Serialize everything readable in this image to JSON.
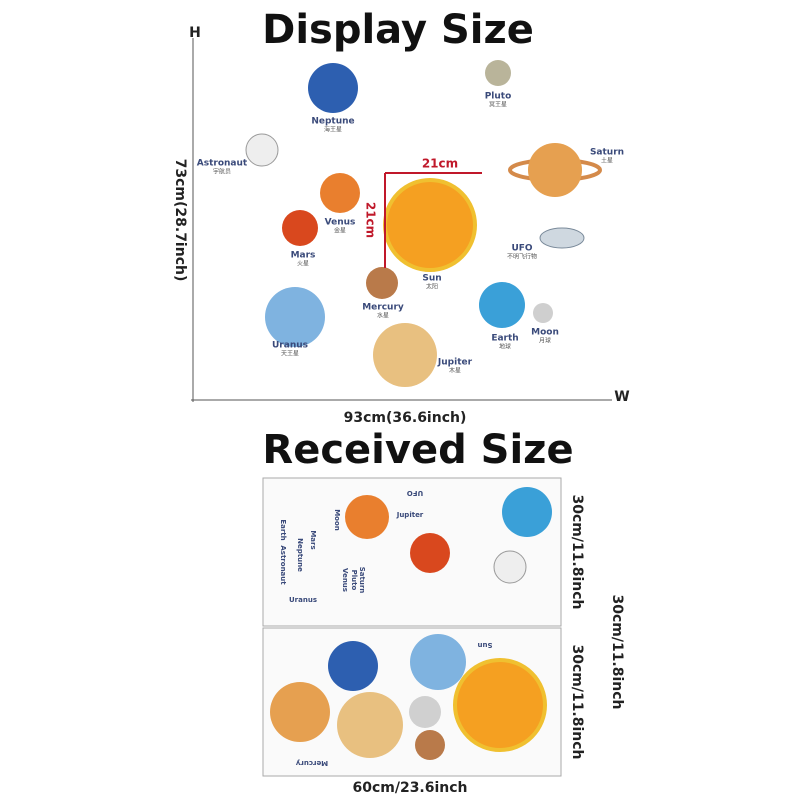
{
  "display": {
    "title": "Display Size",
    "h_label": "H",
    "w_label": "W",
    "height": "73cm(28.7inch)",
    "width": "93cm(36.6inch)",
    "sun_width": "21cm",
    "sun_height": "21cm",
    "labels": [
      {
        "name": "Neptune",
        "cn": "海王星"
      },
      {
        "name": "Pluto",
        "cn": "冥王星"
      },
      {
        "name": "Astronaut",
        "cn": "宇航员"
      },
      {
        "name": "Saturn",
        "cn": "土星"
      },
      {
        "name": "Venus",
        "cn": "金星"
      },
      {
        "name": "Mars",
        "cn": "火星"
      },
      {
        "name": "Sun",
        "cn": "太阳"
      },
      {
        "name": "UFO",
        "cn": "不明飞行物"
      },
      {
        "name": "Mercury",
        "cn": "水星"
      },
      {
        "name": "Earth",
        "cn": "地球"
      },
      {
        "name": "Moon",
        "cn": "月球"
      },
      {
        "name": "Uranus",
        "cn": "天王星"
      },
      {
        "name": "Jupiter",
        "cn": "木星"
      }
    ]
  },
  "received": {
    "title": "Received Size",
    "sheet_height_1": "30cm/11.8inch",
    "sheet_height_2": "30cm/11.8inch",
    "total_height": "30cm/11.8inch",
    "width": "60cm/23.6inch",
    "sheet1_labels": [
      "Moon",
      "Mars",
      "Earth",
      "Neptune",
      "Astronaut",
      "Venus",
      "Pluto",
      "Saturn",
      "Uranus",
      "Jupiter",
      "UFO"
    ],
    "sheet2_labels": [
      "Sun",
      "Mercury"
    ]
  }
}
